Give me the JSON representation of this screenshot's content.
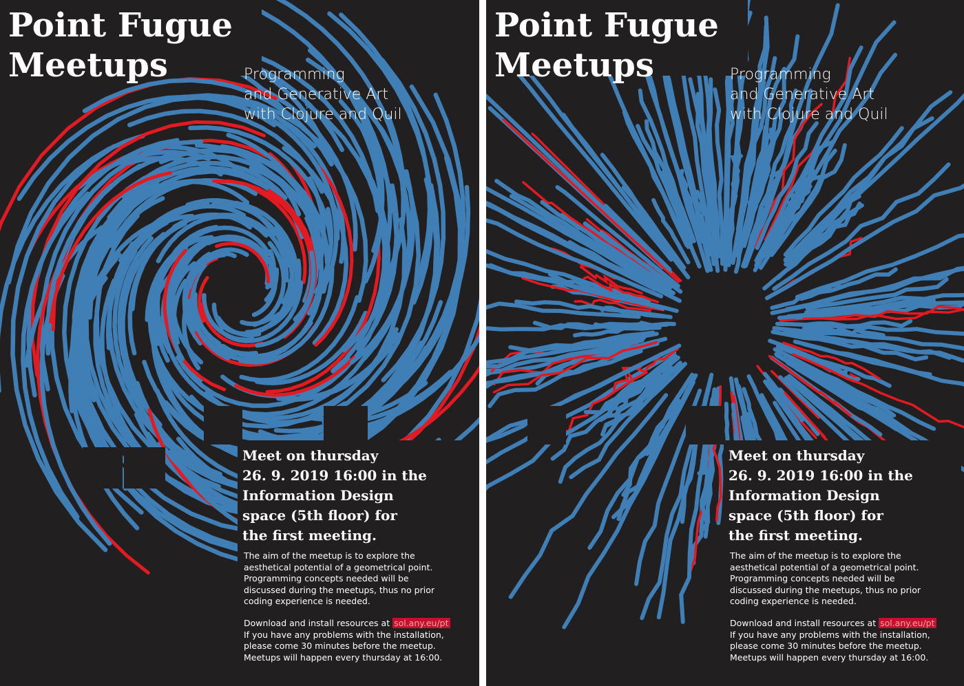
{
  "accent_red": "#e21a22",
  "accent_blue": "#3f7fb5",
  "background": "#221f20",
  "posters": [
    {
      "variant": "spiral",
      "title_line1": "Point Fugue",
      "title_line2": "Meetups",
      "subtitle_lines": [
        "Programming",
        "and Generative Art",
        "with Clojure and Quil"
      ],
      "meet_lines": [
        "Meet on thursday",
        "26. 9. 2019 16:00 in the",
        "Information Design",
        "space (5th floor) for",
        "the first meeting."
      ],
      "desc_lines": [
        "The aim of the meetup is to explore the",
        "aesthetical potential of a geometrical point.",
        "Programming concepts needed will be",
        "discussed during the meetups, thus no prior",
        "coding experience is needed."
      ],
      "download_prefix": "Download and install resources at ",
      "link_text": "sol.any.eu/pt",
      "info_lines": [
        "If you have any problems with the installation,",
        "please come 30 minutes before the meetup.",
        "Meetups will happen every thursday at 16:00."
      ]
    },
    {
      "variant": "burst",
      "title_line1": "Point Fugue",
      "title_line2": "Meetups",
      "subtitle_lines": [
        "Programming",
        "and Generative Art",
        "with Clojure and Quil"
      ],
      "meet_lines": [
        "Meet on thursday",
        "26. 9. 2019 16:00 in the",
        "Information Design",
        "space (5th floor) for",
        "the first meeting."
      ],
      "desc_lines": [
        "The aim of the meetup is to explore the",
        "aesthetical potential of a geometrical point.",
        "Programming concepts needed will be",
        "discussed during the meetups, thus no prior",
        "coding experience is needed."
      ],
      "download_prefix": "Download and install resources at ",
      "link_text": "sol.any.eu/pt",
      "info_lines": [
        "If you have any problems with the installation,",
        "please come 30 minutes before the meetup.",
        "Meetups will happen every thursday at 16:00."
      ]
    }
  ]
}
